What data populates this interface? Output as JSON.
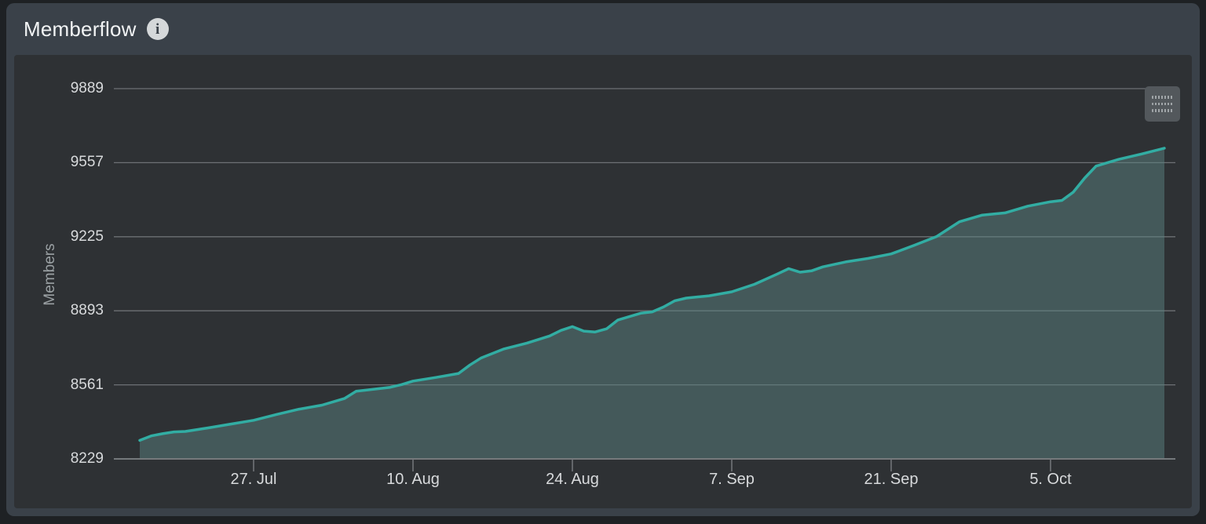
{
  "panel": {
    "title": "Memberflow",
    "info_glyph": "i"
  },
  "chart_data": {
    "type": "area",
    "title": "Memberflow",
    "ylabel": "Members",
    "xlabel": "",
    "ylim": [
      8229,
      9889
    ],
    "y_ticks": [
      8229,
      8561,
      8893,
      9225,
      9557,
      9889
    ],
    "x_ticks": [
      {
        "label": "27. Jul",
        "day": 10
      },
      {
        "label": "10. Aug",
        "day": 24
      },
      {
        "label": "24. Aug",
        "day": 38
      },
      {
        "label": "7. Sep",
        "day": 52
      },
      {
        "label": "21. Sep",
        "day": 66
      },
      {
        "label": "5. Oct",
        "day": 80
      }
    ],
    "x_range_days": [
      0,
      90
    ],
    "grid": true,
    "legend": "none",
    "series": [
      {
        "name": "Members",
        "dates": [
          "17. Jul",
          "18. Jul",
          "19. Jul",
          "20. Jul",
          "21. Jul",
          "23. Jul",
          "25. Jul",
          "27. Jul",
          "29. Jul",
          "31. Jul",
          "2. Aug",
          "4. Aug",
          "5. Aug",
          "6. Aug",
          "8. Aug",
          "9. Aug",
          "10. Aug",
          "12. Aug",
          "14. Aug",
          "15. Aug",
          "16. Aug",
          "18. Aug",
          "20. Aug",
          "22. Aug",
          "23. Aug",
          "24. Aug",
          "25. Aug",
          "26. Aug",
          "27. Aug",
          "28. Aug",
          "30. Aug",
          "31. Aug",
          "1. Sep",
          "2. Sep",
          "3. Sep",
          "5. Sep",
          "7. Sep",
          "9. Sep",
          "11. Sep",
          "12. Sep",
          "13. Sep",
          "14. Sep",
          "15. Sep",
          "17. Sep",
          "19. Sep",
          "21. Sep",
          "23. Sep",
          "25. Sep",
          "27. Sep",
          "29. Sep",
          "1. Oct",
          "3. Oct",
          "5. Oct",
          "6. Oct",
          "7. Oct",
          "8. Oct",
          "9. Oct",
          "11. Oct",
          "13. Oct",
          "15. Oct"
        ],
        "day_offsets": [
          0,
          1,
          2,
          3,
          4,
          6,
          8,
          10,
          12,
          14,
          16,
          18,
          19,
          20,
          22,
          23,
          24,
          26,
          28,
          29,
          30,
          32,
          34,
          36,
          37,
          38,
          39,
          40,
          41,
          42,
          44,
          45,
          46,
          47,
          48,
          50,
          52,
          54,
          56,
          57,
          58,
          59,
          60,
          62,
          64,
          66,
          68,
          70,
          72,
          74,
          76,
          78,
          80,
          81,
          82,
          83,
          84,
          86,
          88,
          90
        ],
        "values": [
          8312,
          8332,
          8342,
          8350,
          8352,
          8368,
          8385,
          8402,
          8428,
          8452,
          8470,
          8500,
          8532,
          8538,
          8550,
          8562,
          8578,
          8594,
          8612,
          8650,
          8682,
          8722,
          8748,
          8780,
          8805,
          8822,
          8802,
          8798,
          8812,
          8852,
          8882,
          8888,
          8910,
          8938,
          8950,
          8960,
          8978,
          9012,
          9058,
          9082,
          9066,
          9072,
          9090,
          9112,
          9128,
          9148,
          9186,
          9226,
          9292,
          9322,
          9332,
          9362,
          9382,
          9388,
          9425,
          9488,
          9542,
          9572,
          9596,
          9622
        ]
      }
    ]
  },
  "colors": {
    "page_bg": "#1e2124",
    "panel_bg": "#3a4149",
    "chart_bg": "#2e3134",
    "grid": "#6d7175",
    "axis_line": "#75797c",
    "tick_label": "#d8dadc",
    "axis_title": "#9aa0a3",
    "line": "#32ada3",
    "fill": "rgba(90,130,128,0.5)",
    "title_text": "#f2f4f5",
    "info_icon_bg": "#d5d8da",
    "menu_btn_bg": "#53585c",
    "menu_btn_lines": "#a0a5a8"
  }
}
